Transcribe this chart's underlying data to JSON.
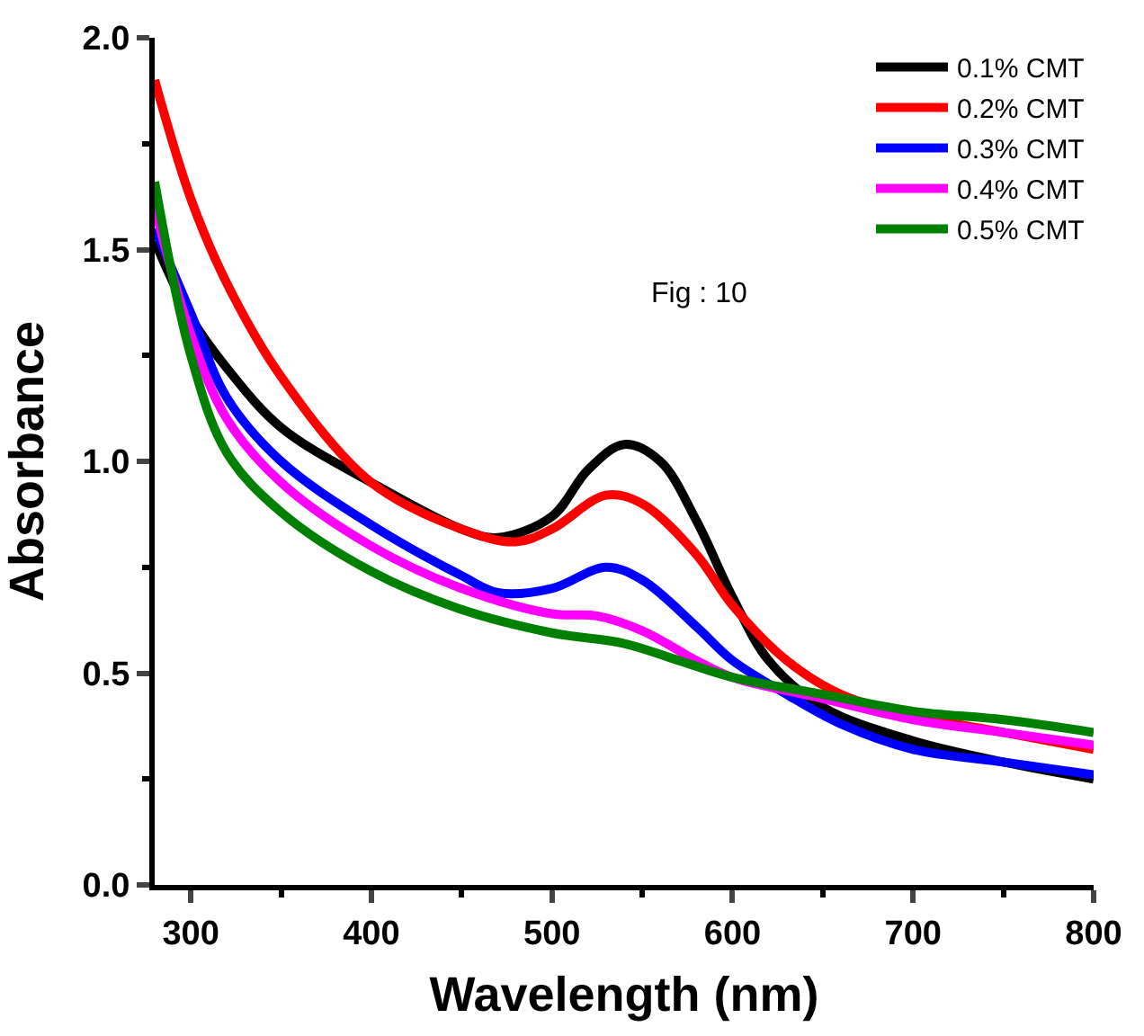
{
  "chart_data": {
    "type": "line",
    "xlabel": "Wavelength (nm)",
    "ylabel": "Absorbance",
    "annotations": [
      "Fig : 10"
    ],
    "xlim": [
      280,
      800
    ],
    "xticks": [
      300,
      400,
      500,
      600,
      700,
      800
    ],
    "ylim": [
      0,
      2.0
    ],
    "yticks": [
      {
        "value": 0,
        "label": "0.0"
      },
      0.5,
      {
        "value": 1,
        "label": "1.0"
      },
      1.5,
      {
        "value": 2,
        "label": "2.0"
      }
    ],
    "legend": "top right",
    "marker": "none",
    "line_style": "solid",
    "series": [
      {
        "name": "0.1% CMT",
        "color": "#000000",
        "x": [
          280,
          300,
          320,
          350,
          400,
          450,
          470,
          500,
          520,
          540,
          560,
          580,
          600,
          620,
          650,
          700,
          750,
          800
        ],
        "values": [
          1.52,
          1.34,
          1.22,
          1.08,
          0.95,
          0.84,
          0.82,
          0.87,
          0.98,
          1.04,
          1.0,
          0.86,
          0.68,
          0.53,
          0.42,
          0.34,
          0.29,
          0.25
        ]
      },
      {
        "name": "0.2% CMT",
        "color": "#ff0000",
        "x": [
          280,
          300,
          320,
          350,
          400,
          450,
          480,
          500,
          530,
          550,
          580,
          600,
          630,
          660,
          700,
          750,
          800
        ],
        "values": [
          1.9,
          1.62,
          1.42,
          1.2,
          0.95,
          0.84,
          0.81,
          0.84,
          0.92,
          0.9,
          0.78,
          0.66,
          0.53,
          0.45,
          0.4,
          0.36,
          0.32
        ]
      },
      {
        "name": "0.3% CMT",
        "color": "#0000ff",
        "x": [
          280,
          300,
          320,
          350,
          400,
          450,
          470,
          500,
          530,
          550,
          580,
          600,
          630,
          660,
          700,
          750,
          800
        ],
        "values": [
          1.55,
          1.35,
          1.15,
          1.0,
          0.85,
          0.73,
          0.69,
          0.7,
          0.75,
          0.72,
          0.61,
          0.53,
          0.45,
          0.38,
          0.32,
          0.29,
          0.26
        ]
      },
      {
        "name": "0.4% CMT",
        "color": "#ff00ff",
        "x": [
          280,
          300,
          320,
          350,
          400,
          450,
          500,
          525,
          550,
          580,
          600,
          650,
          700,
          750,
          800
        ],
        "values": [
          1.6,
          1.3,
          1.1,
          0.95,
          0.8,
          0.7,
          0.64,
          0.635,
          0.6,
          0.53,
          0.49,
          0.44,
          0.39,
          0.36,
          0.33
        ]
      },
      {
        "name": "0.5% CMT",
        "color": "#008000",
        "x": [
          280,
          300,
          320,
          350,
          400,
          450,
          500,
          540,
          570,
          600,
          650,
          700,
          750,
          800
        ],
        "values": [
          1.66,
          1.25,
          1.02,
          0.88,
          0.74,
          0.65,
          0.595,
          0.57,
          0.53,
          0.49,
          0.45,
          0.41,
          0.39,
          0.36
        ]
      }
    ]
  }
}
